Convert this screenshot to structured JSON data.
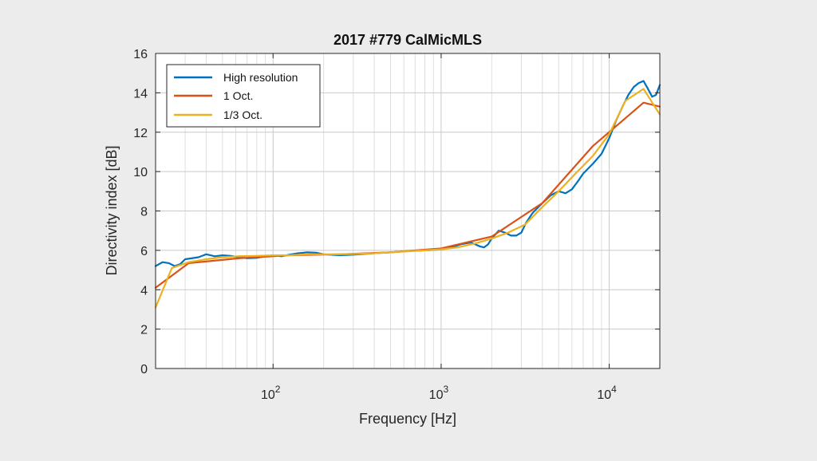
{
  "chart_data": {
    "type": "line",
    "title": "2017 #779 CalMicMLS",
    "xlabel": "Frequency [Hz]",
    "ylabel": "Directivity index [dB]",
    "xscale": "log",
    "xlim": [
      20,
      20000
    ],
    "ylim": [
      0,
      16
    ],
    "yticks": [
      0,
      2,
      4,
      6,
      8,
      10,
      12,
      14,
      16
    ],
    "xticks": [
      {
        "value": 100,
        "base": "10",
        "exp": "2"
      },
      {
        "value": 1000,
        "base": "10",
        "exp": "3"
      },
      {
        "value": 10000,
        "base": "10",
        "exp": "4"
      }
    ],
    "grid": true,
    "legend_position": "top-left",
    "series": [
      {
        "name": "High resolution",
        "color": "#0072BD",
        "x": [
          20,
          22,
          24,
          26,
          28,
          30,
          33,
          36,
          40,
          45,
          50,
          56,
          63,
          70,
          80,
          90,
          100,
          112,
          125,
          140,
          160,
          180,
          200,
          250,
          300,
          400,
          500,
          600,
          700,
          800,
          900,
          1000,
          1100,
          1200,
          1300,
          1400,
          1500,
          1600,
          1700,
          1800,
          1900,
          2000,
          2200,
          2400,
          2600,
          2800,
          3000,
          3200,
          3500,
          4000,
          4500,
          5000,
          5500,
          6000,
          6500,
          7000,
          8000,
          9000,
          10000,
          11000,
          12000,
          13000,
          14000,
          15000,
          16000,
          17000,
          18000,
          19000,
          20000
        ],
        "y": [
          5.2,
          5.4,
          5.35,
          5.2,
          5.3,
          5.55,
          5.6,
          5.65,
          5.8,
          5.7,
          5.75,
          5.72,
          5.65,
          5.6,
          5.62,
          5.7,
          5.75,
          5.7,
          5.78,
          5.85,
          5.9,
          5.88,
          5.8,
          5.75,
          5.78,
          5.85,
          5.9,
          5.95,
          5.98,
          6.0,
          6.02,
          6.05,
          6.1,
          6.2,
          6.3,
          6.35,
          6.4,
          6.3,
          6.2,
          6.15,
          6.3,
          6.6,
          7.0,
          6.9,
          6.75,
          6.75,
          6.9,
          7.4,
          7.9,
          8.4,
          8.8,
          9.0,
          8.9,
          9.1,
          9.5,
          9.9,
          10.4,
          10.9,
          11.7,
          12.6,
          13.3,
          13.9,
          14.3,
          14.5,
          14.6,
          14.2,
          13.8,
          13.9,
          14.4
        ]
      },
      {
        "name": "1 Oct.",
        "color": "#D95319",
        "x": [
          20,
          31.5,
          63,
          125,
          250,
          500,
          1000,
          2000,
          4000,
          8000,
          16000,
          20000
        ],
        "y": [
          4.1,
          5.35,
          5.6,
          5.75,
          5.8,
          5.9,
          6.1,
          6.7,
          8.4,
          11.3,
          13.5,
          13.3
        ]
      },
      {
        "name": "1/3 Oct.",
        "color": "#EDB120",
        "x": [
          20,
          25,
          31.5,
          40,
          50,
          63,
          80,
          100,
          125,
          160,
          200,
          250,
          315,
          400,
          500,
          630,
          800,
          1000,
          1250,
          1600,
          2000,
          2500,
          3150,
          4000,
          5000,
          6300,
          8000,
          10000,
          12500,
          16000,
          20000
        ],
        "y": [
          3.1,
          5.1,
          5.4,
          5.55,
          5.65,
          5.7,
          5.72,
          5.75,
          5.75,
          5.8,
          5.8,
          5.8,
          5.82,
          5.85,
          5.9,
          5.95,
          6.0,
          6.05,
          6.15,
          6.35,
          6.6,
          6.9,
          7.3,
          8.2,
          9.0,
          9.9,
          10.8,
          11.9,
          13.6,
          14.2,
          12.9
        ]
      }
    ]
  }
}
